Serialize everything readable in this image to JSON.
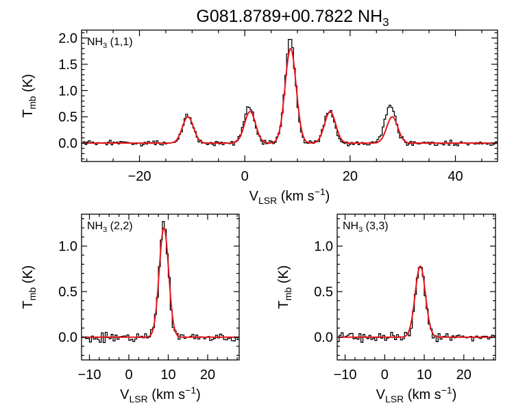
{
  "figure": {
    "title": "G081.8789+00.7822 NH",
    "title_sub": "3"
  },
  "colors": {
    "data": "#000000",
    "fit": "#e8141b",
    "axes": "#000000",
    "background": "#ffffff"
  },
  "chart_data": [
    {
      "type": "line",
      "panel": "top",
      "label_main": "NH",
      "label_sub": "3",
      "label_rest": " (1,1)",
      "xlim": [
        -31,
        48
      ],
      "ylim": [
        -0.35,
        2.15
      ],
      "xticks": [
        -20,
        0,
        20,
        40
      ],
      "xtick_labels": [
        "−20",
        "0",
        "20",
        "40"
      ],
      "yticks": [
        0.0,
        0.5,
        1.0,
        1.5,
        2.0
      ],
      "ytick_labels": [
        "0.0",
        "0.5",
        "1.0",
        "1.5",
        "2.0"
      ],
      "xlabel": {
        "main": "V",
        "sub": "LSR",
        "rest": " (km s",
        "sup": "−1",
        "end": ")"
      },
      "ylabel": {
        "main": "T",
        "sub": "mb",
        "rest": " (K)"
      },
      "fit": {
        "components": [
          {
            "amp": 0.5,
            "center": -10.8,
            "sigma": 1.05
          },
          {
            "amp": 0.6,
            "center": 1.0,
            "sigma": 1.05
          },
          {
            "amp": 1.8,
            "center": 8.7,
            "sigma": 1.05
          },
          {
            "amp": 0.6,
            "center": 16.2,
            "sigma": 1.05
          },
          {
            "amp": 0.5,
            "center": 28.0,
            "sigma": 1.05
          }
        ]
      },
      "observed_peaks": [
        {
          "center": -11.0,
          "peak": 0.52
        },
        {
          "center": 0.7,
          "peak": 0.7
        },
        {
          "center": 8.5,
          "peak": 1.97
        },
        {
          "center": 15.9,
          "peak": 0.62
        },
        {
          "center": 27.5,
          "peak": 0.73
        }
      ],
      "noise_rms": 0.03
    },
    {
      "type": "line",
      "panel": "bottom-left",
      "label_main": "NH",
      "label_sub": "3",
      "label_rest": " (2,2)",
      "xlim": [
        -12,
        28
      ],
      "ylim": [
        -0.25,
        1.35
      ],
      "xticks": [
        -10,
        0,
        10,
        20
      ],
      "xtick_labels": [
        "−10",
        "0",
        "10",
        "20"
      ],
      "yticks": [
        0.0,
        0.5,
        1.0
      ],
      "ytick_labels": [
        "0.0",
        "0.5",
        "1.0"
      ],
      "xlabel": {
        "main": "V",
        "sub": "LSR",
        "rest": " (km s",
        "sup": "−1",
        "end": ")"
      },
      "ylabel": {
        "main": "T",
        "sub": "mb",
        "rest": " (K)"
      },
      "fit": {
        "components": [
          {
            "amp": 1.2,
            "center": 8.9,
            "sigma": 1.2
          }
        ]
      },
      "observed_peaks": [
        {
          "center": 8.6,
          "peak": 1.25
        }
      ],
      "noise_rms": 0.035
    },
    {
      "type": "line",
      "panel": "bottom-right",
      "label_main": "NH",
      "label_sub": "3",
      "label_rest": " (3,3)",
      "xlim": [
        -12,
        28
      ],
      "ylim": [
        -0.25,
        1.35
      ],
      "xticks": [
        -10,
        0,
        10,
        20
      ],
      "xtick_labels": [
        "−10",
        "0",
        "10",
        "20"
      ],
      "yticks": [
        0.0,
        0.5,
        1.0
      ],
      "ytick_labels": [
        "0.0",
        "0.5",
        "1.0"
      ],
      "xlabel": {
        "main": "V",
        "sub": "LSR",
        "rest": " (km s",
        "sup": "−1",
        "end": ")"
      },
      "ylabel": {
        "main": "T",
        "sub": "mb",
        "rest": " (K)"
      },
      "fit": {
        "components": [
          {
            "amp": 0.78,
            "center": 9.0,
            "sigma": 1.3
          }
        ]
      },
      "observed_peaks": [
        {
          "center": 8.8,
          "peak": 0.78
        }
      ],
      "noise_rms": 0.03
    }
  ]
}
